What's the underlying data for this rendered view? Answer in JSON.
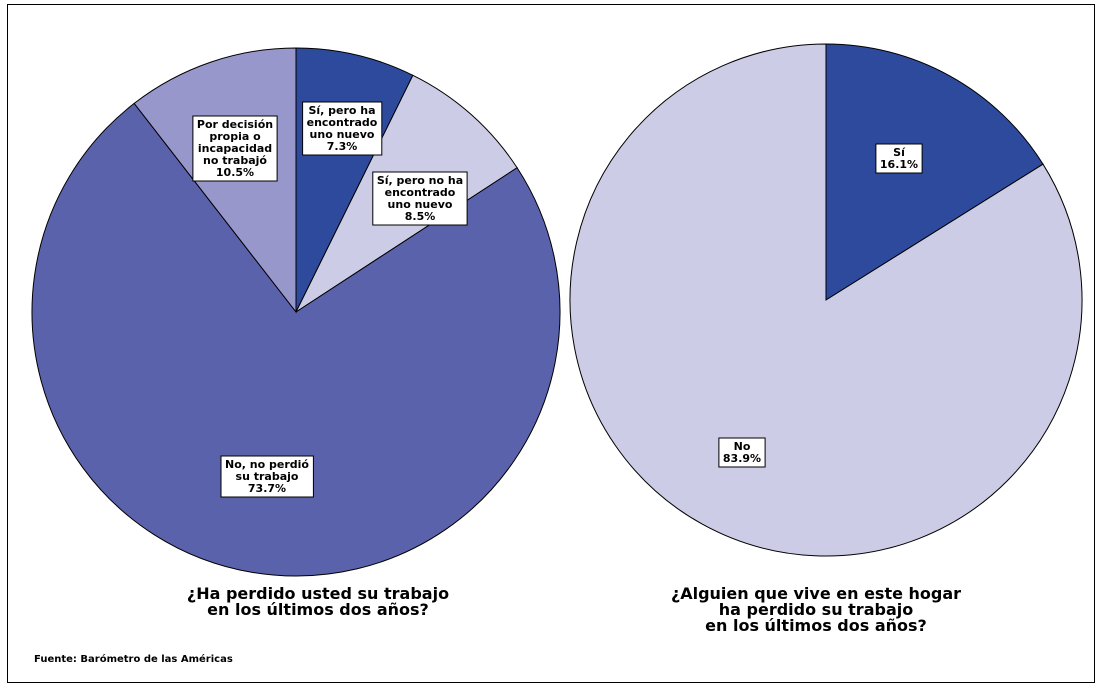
{
  "chart_data": [
    {
      "type": "pie",
      "title": "¿Ha perdido usted su trabajo\nen los últimos dos años?",
      "slices": [
        {
          "label": "Sí, pero ha encontrado uno nuevo",
          "display": "Sí, pero ha\nencontrado\nuno nuevo\n7.3%",
          "value": 7.3,
          "color": "#2e4a9c"
        },
        {
          "label": "Sí, pero no ha encontrado uno nuevo",
          "display": "Sí, pero no ha\nencontrado\nuno nuevo\n8.5%",
          "value": 8.5,
          "color": "#cccce6"
        },
        {
          "label": "No, no perdió su trabajo",
          "display": "No, no perdió\nsu trabajo\n73.7%",
          "value": 73.7,
          "color": "#5b62ac"
        },
        {
          "label": "Por decisión propia o incapacidad no trabajó",
          "display": "Por decisión\npropia o\nincapacidad\nno trabajó\n10.5%",
          "value": 10.5,
          "color": "#9897cc"
        }
      ]
    },
    {
      "type": "pie",
      "title": "¿Alguien que vive en este hogar\nha perdido su trabajo\nen los últimos dos años?",
      "slices": [
        {
          "label": "Sí",
          "display": "Sí\n16.1%",
          "value": 16.1,
          "color": "#2e4a9c"
        },
        {
          "label": "No",
          "display": "No\n83.9%",
          "value": 83.9,
          "color": "#cccce6"
        }
      ]
    }
  ],
  "source": "Fuente: Barómetro de las Américas"
}
